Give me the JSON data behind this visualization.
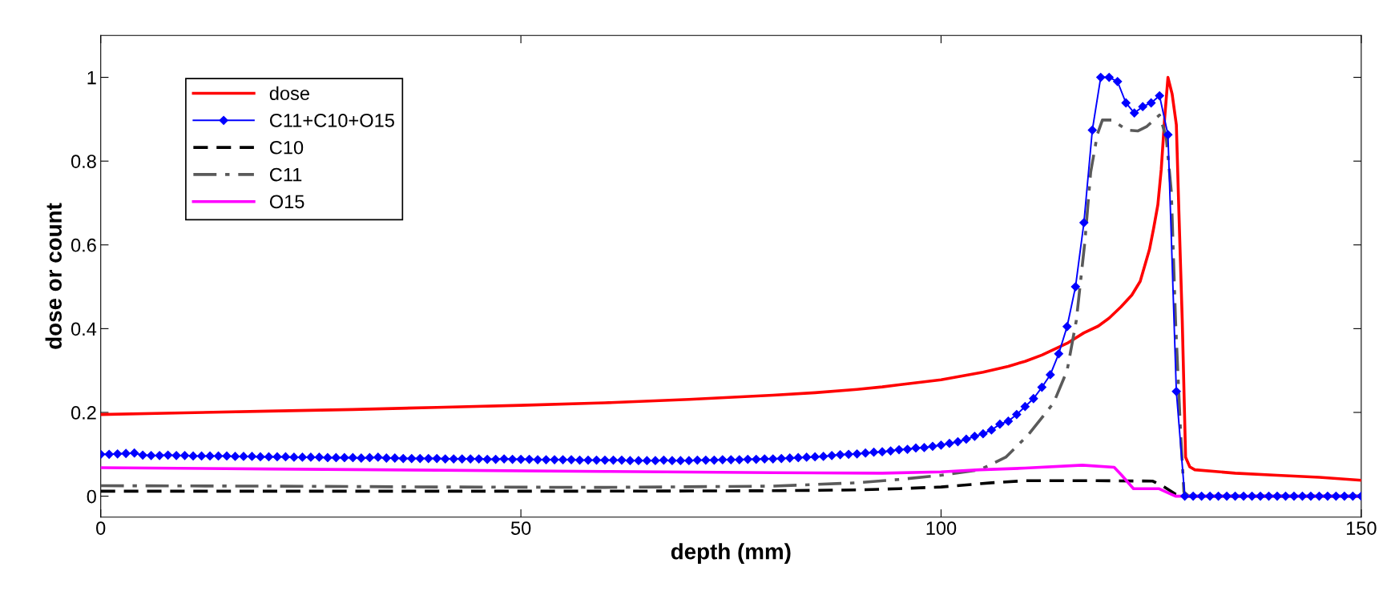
{
  "chart_data": {
    "type": "line",
    "xlabel": "depth (mm)",
    "ylabel": "dose or count",
    "xlim": [
      0,
      150
    ],
    "xticks": [
      0,
      50,
      100,
      150
    ],
    "ylim": [
      -0.05,
      1.1
    ],
    "yticks": [
      0,
      0.2,
      0.4,
      0.6,
      0.8,
      1
    ],
    "grid": false,
    "legend": "top left",
    "series": [
      {
        "name": "dose",
        "color": "#ff0000",
        "line_style": "solid",
        "marker": "none",
        "x": [
          0,
          10,
          20,
          30,
          40,
          50,
          60,
          70,
          80,
          85,
          90,
          93,
          95,
          100,
          105,
          108,
          110,
          112,
          115,
          117,
          118.7,
          120,
          121.4,
          122.7,
          123.7,
          124.8,
          125.3,
          125.8,
          126.2,
          126.6,
          127,
          127.5,
          128,
          128.3,
          128.7,
          129.1,
          129.6,
          130.2,
          135,
          140,
          145,
          150
        ],
        "values": [
          0.195,
          0.199,
          0.203,
          0.207,
          0.212,
          0.217,
          0.223,
          0.231,
          0.241,
          0.247,
          0.255,
          0.261,
          0.266,
          0.278,
          0.296,
          0.31,
          0.322,
          0.337,
          0.365,
          0.39,
          0.406,
          0.425,
          0.452,
          0.48,
          0.513,
          0.589,
          0.64,
          0.696,
          0.78,
          0.9,
          1.0,
          0.96,
          0.887,
          0.681,
          0.421,
          0.093,
          0.07,
          0.063,
          0.055,
          0.05,
          0.045,
          0.038
        ]
      },
      {
        "name": "C11+C10+O15",
        "color": "#0000ff",
        "line_style": "solid",
        "marker": "diamond",
        "x": [
          0,
          1,
          2,
          3,
          4,
          5,
          6,
          7,
          8,
          9,
          10,
          11,
          12,
          13,
          14,
          15,
          16,
          17,
          18,
          19,
          20,
          21,
          22,
          23,
          24,
          25,
          26,
          27,
          28,
          29,
          30,
          31,
          32,
          33,
          34,
          35,
          36,
          37,
          38,
          39,
          40,
          41,
          42,
          43,
          44,
          45,
          46,
          47,
          48,
          49,
          50,
          51,
          52,
          53,
          54,
          55,
          56,
          57,
          58,
          59,
          60,
          61,
          62,
          63,
          64,
          65,
          66,
          67,
          68,
          69,
          70,
          71,
          72,
          73,
          74,
          75,
          76,
          77,
          78,
          79,
          80,
          81,
          82,
          83,
          84,
          85,
          86,
          87,
          88,
          89,
          90,
          91,
          92,
          93,
          94,
          95,
          96,
          97,
          98,
          99,
          100,
          101,
          102,
          103,
          104,
          105,
          106,
          107,
          108,
          109,
          110,
          111,
          112,
          113,
          114,
          115,
          116,
          117,
          118,
          119,
          120,
          121,
          122,
          123,
          124,
          125,
          126,
          127,
          128,
          129,
          130,
          131,
          132,
          133,
          134,
          135,
          136,
          137,
          138,
          139,
          140,
          141,
          142,
          143,
          144,
          145,
          146,
          147,
          148,
          149,
          150
        ],
        "values": [
          0.1,
          0.1,
          0.101,
          0.102,
          0.103,
          0.098,
          0.097,
          0.097,
          0.098,
          0.097,
          0.097,
          0.096,
          0.096,
          0.096,
          0.096,
          0.096,
          0.095,
          0.095,
          0.095,
          0.094,
          0.094,
          0.094,
          0.094,
          0.093,
          0.093,
          0.093,
          0.093,
          0.092,
          0.092,
          0.092,
          0.092,
          0.091,
          0.092,
          0.093,
          0.091,
          0.091,
          0.09,
          0.09,
          0.09,
          0.09,
          0.09,
          0.089,
          0.089,
          0.089,
          0.089,
          0.089,
          0.088,
          0.088,
          0.089,
          0.088,
          0.088,
          0.088,
          0.087,
          0.087,
          0.087,
          0.087,
          0.087,
          0.086,
          0.086,
          0.086,
          0.086,
          0.086,
          0.086,
          0.085,
          0.085,
          0.085,
          0.085,
          0.086,
          0.085,
          0.085,
          0.085,
          0.086,
          0.086,
          0.086,
          0.087,
          0.087,
          0.087,
          0.088,
          0.088,
          0.089,
          0.089,
          0.09,
          0.091,
          0.092,
          0.093,
          0.094,
          0.095,
          0.097,
          0.099,
          0.1,
          0.101,
          0.103,
          0.105,
          0.106,
          0.108,
          0.111,
          0.112,
          0.115,
          0.116,
          0.119,
          0.122,
          0.126,
          0.13,
          0.136,
          0.143,
          0.149,
          0.158,
          0.172,
          0.179,
          0.195,
          0.214,
          0.233,
          0.26,
          0.29,
          0.34,
          0.405,
          0.5,
          0.653,
          0.874,
          1.0,
          1.0,
          0.99,
          0.939,
          0.915,
          0.93,
          0.939,
          0.956,
          0.863,
          0.25,
          0.0,
          0,
          0,
          0,
          0,
          0,
          0,
          0,
          0,
          0,
          0,
          0,
          0,
          0,
          0,
          0,
          0,
          0,
          0,
          0,
          0,
          0
        ]
      },
      {
        "name": "C10",
        "color": "#000000",
        "line_style": "dashed",
        "marker": "none",
        "x": [
          0,
          30,
          60,
          80,
          90,
          95,
          100,
          106,
          110,
          118,
          125.2,
          126.4,
          127.9,
          129,
          150
        ],
        "values": [
          0.012,
          0.012,
          0.012,
          0.013,
          0.015,
          0.018,
          0.022,
          0.032,
          0.037,
          0.037,
          0.036,
          0.024,
          0.005,
          0,
          0
        ]
      },
      {
        "name": "C11",
        "color": "#5a5a5a",
        "line_style": "dashdot",
        "marker": "none",
        "x": [
          0,
          20,
          40,
          60,
          80,
          90,
          95,
          100,
          104.6,
          107.7,
          110.4,
          113.4,
          115,
          116.1,
          117.1,
          117.8,
          118.6,
          119.2,
          120.3,
          122.2,
          123.4,
          124.5,
          126,
          126.8,
          127.4,
          127.9,
          128.5,
          128.9,
          129.5,
          150
        ],
        "values": [
          0.025,
          0.024,
          0.022,
          0.021,
          0.024,
          0.032,
          0.04,
          0.05,
          0.063,
          0.093,
          0.147,
          0.223,
          0.3,
          0.42,
          0.605,
          0.773,
          0.864,
          0.898,
          0.898,
          0.874,
          0.872,
          0.883,
          0.91,
          0.856,
          0.727,
          0.42,
          0.154,
          0.01,
          0,
          0
        ]
      },
      {
        "name": "O15",
        "color": "#ff00ff",
        "line_style": "solid",
        "marker": "none",
        "x": [
          0,
          20,
          40,
          60,
          80,
          93,
          100,
          104.6,
          110,
          116.8,
          120.6,
          121.5,
          122.9,
          125.9,
          127.9,
          150
        ],
        "values": [
          0.068,
          0.065,
          0.062,
          0.059,
          0.056,
          0.055,
          0.058,
          0.063,
          0.067,
          0.074,
          0.069,
          0.05,
          0.018,
          0.018,
          0,
          0
        ]
      }
    ]
  }
}
